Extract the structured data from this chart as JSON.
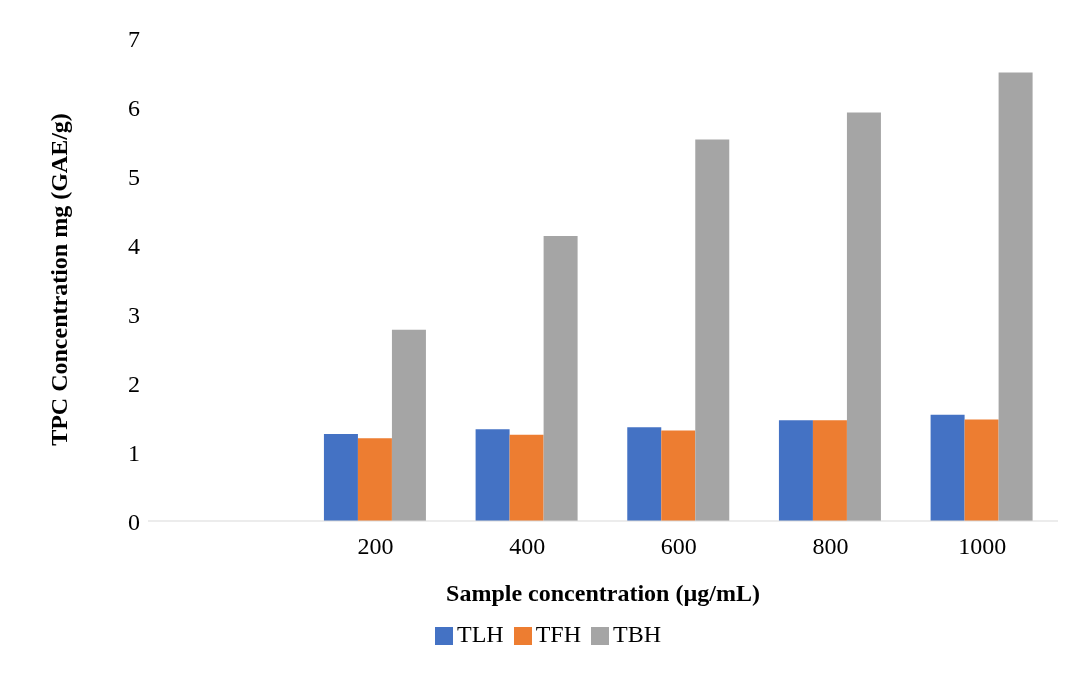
{
  "chart_data": {
    "type": "bar",
    "xlabel": "Sample concentration (µg/mL)",
    "ylabel": "TPC Concentration mg (GAE/g)",
    "categories": [
      null,
      "200",
      "400",
      "600",
      "800",
      "1000"
    ],
    "series": [
      {
        "name": "TLH",
        "color": "#4472c4",
        "values": [
          null,
          1.26,
          1.33,
          1.36,
          1.46,
          1.54
        ]
      },
      {
        "name": "TFH",
        "color": "#ed7d31",
        "values": [
          null,
          1.2,
          1.25,
          1.31,
          1.46,
          1.47
        ]
      },
      {
        "name": "TBH",
        "color": "#a5a5a5",
        "values": [
          null,
          2.77,
          4.13,
          5.53,
          5.92,
          6.5
        ]
      }
    ],
    "ylim": [
      0,
      7
    ],
    "yticks": [
      0,
      1,
      2,
      3,
      4,
      5,
      6,
      7
    ],
    "grid": false,
    "legend": "bottom"
  }
}
